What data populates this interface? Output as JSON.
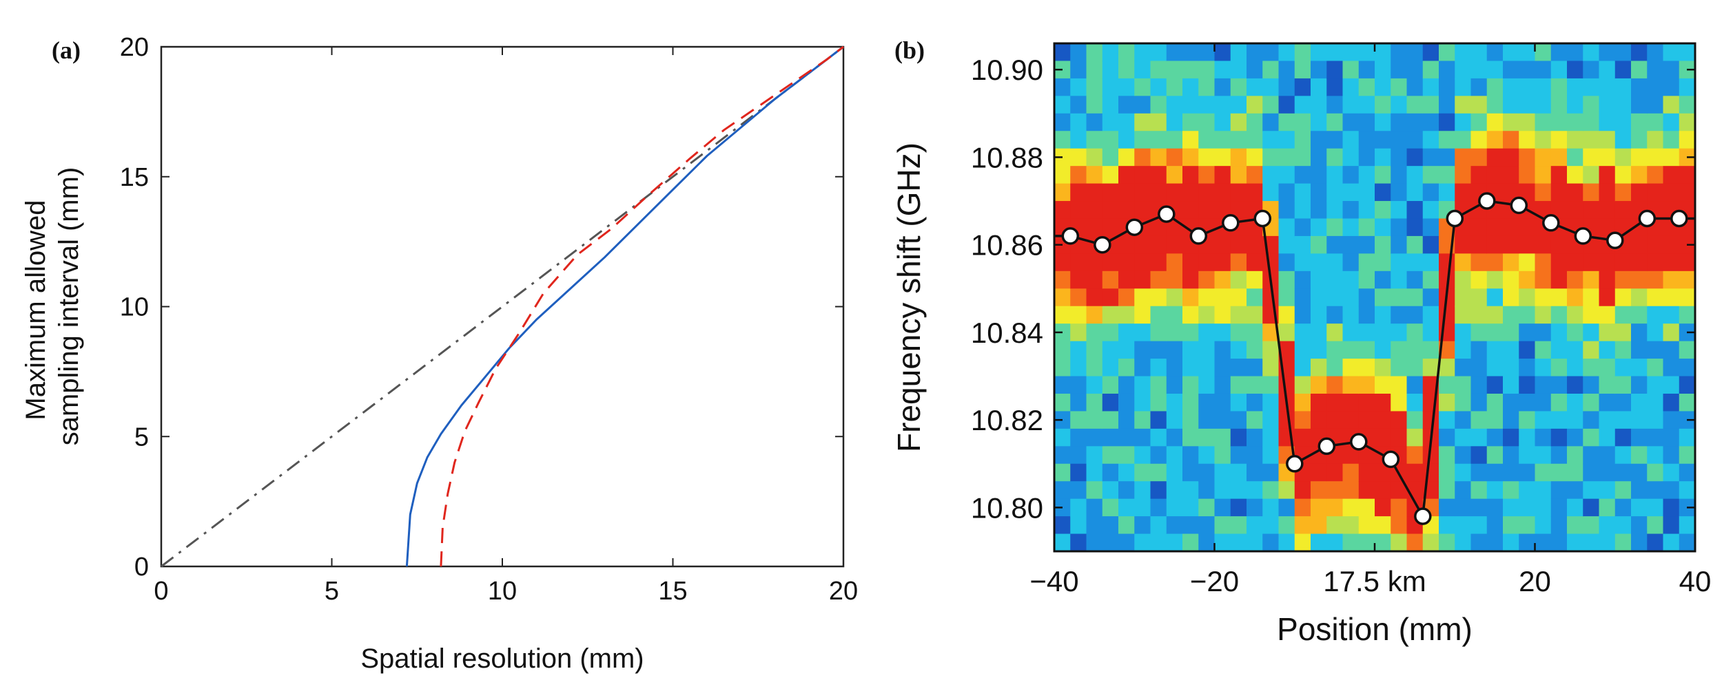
{
  "figure": {
    "panel_a_label": "(a)",
    "panel_b_label": "(b)"
  },
  "chart_data": [
    {
      "type": "line",
      "panel": "(a)",
      "title": "",
      "xlabel": "Spatial resolution (mm)",
      "ylabel_lines": [
        "Maximum allowed",
        "sampling interval (mm)"
      ],
      "xlim": [
        0,
        20
      ],
      "ylim": [
        0,
        20
      ],
      "xticks": [
        0,
        5,
        10,
        15,
        20
      ],
      "yticks": [
        0,
        5,
        10,
        15,
        20
      ],
      "grid": false,
      "series": [
        {
          "name": "dash-dot reference",
          "style": "dashdot",
          "color": "#555555",
          "x": [
            0,
            20
          ],
          "y": [
            0,
            20
          ]
        },
        {
          "name": "solid",
          "style": "solid",
          "color": "#1f5fbf",
          "x": [
            7.2,
            7.3,
            7.5,
            7.8,
            8.2,
            8.8,
            9.5,
            10.2,
            11.0,
            12.0,
            13.0,
            14.0,
            15.0,
            16.0,
            17.0,
            18.0,
            19.0,
            20.0
          ],
          "y": [
            0,
            2.0,
            3.2,
            4.2,
            5.1,
            6.2,
            7.3,
            8.4,
            9.5,
            10.7,
            11.9,
            13.2,
            14.5,
            15.8,
            16.9,
            18.0,
            19.0,
            20.0
          ]
        },
        {
          "name": "dashed",
          "style": "dashed",
          "color": "#e0261d",
          "x": [
            8.2,
            8.25,
            8.4,
            8.6,
            8.9,
            9.3,
            9.8,
            10.5,
            11.2,
            12.2,
            13.2,
            14.2,
            15.5,
            16.5,
            17.5,
            18.5,
            19.5,
            20.0
          ],
          "y": [
            0,
            1.5,
            2.8,
            4.0,
            5.2,
            6.3,
            7.6,
            9.0,
            10.5,
            12.0,
            13.0,
            14.2,
            15.7,
            16.8,
            17.7,
            18.6,
            19.5,
            20.0
          ]
        }
      ]
    },
    {
      "type": "heatmap",
      "panel": "(b)",
      "title": "",
      "xlabel": "Position (mm)",
      "ylabel": "Frequency shift (GHz)",
      "xlim": [
        -40,
        40
      ],
      "ylim": [
        10.79,
        10.906
      ],
      "xtick_values": [
        -40,
        -20,
        0,
        20,
        40
      ],
      "xtick_labels": [
        "−40",
        "−20",
        "17.5 km",
        "20",
        "40"
      ],
      "ytick_values": [
        10.8,
        10.82,
        10.84,
        10.86,
        10.88,
        10.9
      ],
      "ytick_labels": [
        "10.80",
        "10.82",
        "10.84",
        "10.86",
        "10.88",
        "10.90"
      ],
      "colormap": [
        "#0a2f8f",
        "#1758c4",
        "#1a8fe0",
        "#22c4e8",
        "#5ad6a0",
        "#b8e050",
        "#f2ec2a",
        "#fbb51d",
        "#f6721c",
        "#e5231b"
      ],
      "peak_trace": {
        "x": [
          -38,
          -34,
          -30,
          -26,
          -22,
          -18,
          -14,
          -10,
          -6,
          -2,
          2,
          6,
          10,
          14,
          18,
          22,
          26,
          30,
          34,
          38
        ],
        "y": [
          10.862,
          10.86,
          10.864,
          10.867,
          10.862,
          10.865,
          10.866,
          10.81,
          10.814,
          10.815,
          10.811,
          10.798,
          10.866,
          10.87,
          10.869,
          10.865,
          10.862,
          10.861,
          10.866,
          10.866
        ]
      }
    }
  ]
}
